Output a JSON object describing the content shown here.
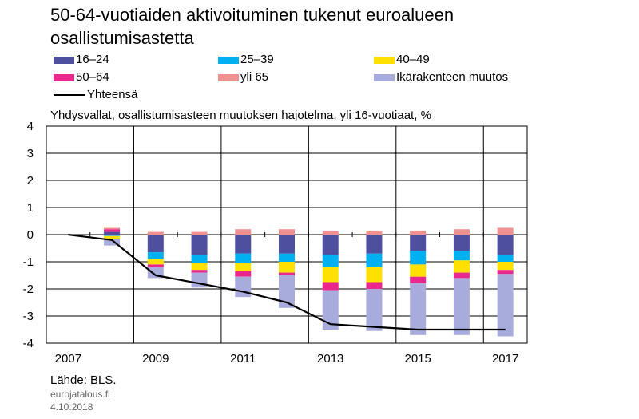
{
  "title_line1": "50-64-vuotiaiden aktivoituminen tukenut euroalueen",
  "title_line2": "osallistumisastetta",
  "subtitle": "Yhdysvallat, osallistumisasteen muutoksen hajotelma, yli 16-vuotiaat, %",
  "source": "Lähde: BLS.",
  "site": "eurojatalous.fi",
  "date": "4.10.2018",
  "colors": {
    "s16_24": "#4F4FA0",
    "s25_39": "#00B0F0",
    "s40_49": "#FFE000",
    "s50_64": "#E8288C",
    "yli65": "#F09090",
    "ika": "#A8ACDC",
    "total": "#000000",
    "grid": "#000000"
  },
  "chart_data": {
    "type": "bar",
    "stacked": true,
    "x": [
      2007,
      2008,
      2009,
      2010,
      2011,
      2012,
      2013,
      2014,
      2015,
      2016,
      2017
    ],
    "ylim": [
      -4,
      4
    ],
    "yticks": [
      4,
      3,
      2,
      1,
      0,
      -1,
      -2,
      -3,
      -4
    ],
    "xtick_labels": [
      "2007",
      "2009",
      "2011",
      "2013",
      "2015",
      "2017"
    ],
    "grid": true,
    "legend_position": "top",
    "series": [
      {
        "key": "s16_24",
        "name": "16–24",
        "values": [
          0,
          0.1,
          -0.65,
          -0.75,
          -0.7,
          -0.7,
          -0.75,
          -0.7,
          -0.6,
          -0.6,
          -0.75
        ]
      },
      {
        "key": "s25_39",
        "name": "25–39",
        "values": [
          0,
          -0.05,
          -0.25,
          -0.3,
          -0.35,
          -0.3,
          -0.45,
          -0.5,
          -0.5,
          -0.35,
          -0.25
        ]
      },
      {
        "key": "s40_49",
        "name": "40–49",
        "values": [
          0,
          -0.1,
          -0.2,
          -0.25,
          -0.3,
          -0.4,
          -0.55,
          -0.55,
          -0.45,
          -0.45,
          -0.3
        ]
      },
      {
        "key": "s50_64",
        "name": "50–64",
        "values": [
          0,
          0.1,
          -0.1,
          -0.1,
          -0.2,
          -0.1,
          -0.3,
          -0.25,
          -0.25,
          -0.2,
          -0.15
        ]
      },
      {
        "key": "yli65",
        "name": "yli 65",
        "values": [
          0,
          0.05,
          0.1,
          0.1,
          0.2,
          0.2,
          0.15,
          0.15,
          0.15,
          0.2,
          0.25
        ]
      },
      {
        "key": "ika",
        "name": "Ikärakenteen muutos",
        "values": [
          0,
          -0.25,
          -0.4,
          -0.55,
          -0.75,
          -1.2,
          -1.45,
          -1.55,
          -1.9,
          -2.1,
          -2.3
        ]
      }
    ],
    "line": {
      "name": "Yhteensä",
      "values": [
        0,
        -0.2,
        -1.5,
        -1.8,
        -2.1,
        -2.5,
        -3.3,
        -3.4,
        -3.5,
        -3.5,
        -3.5
      ]
    }
  }
}
